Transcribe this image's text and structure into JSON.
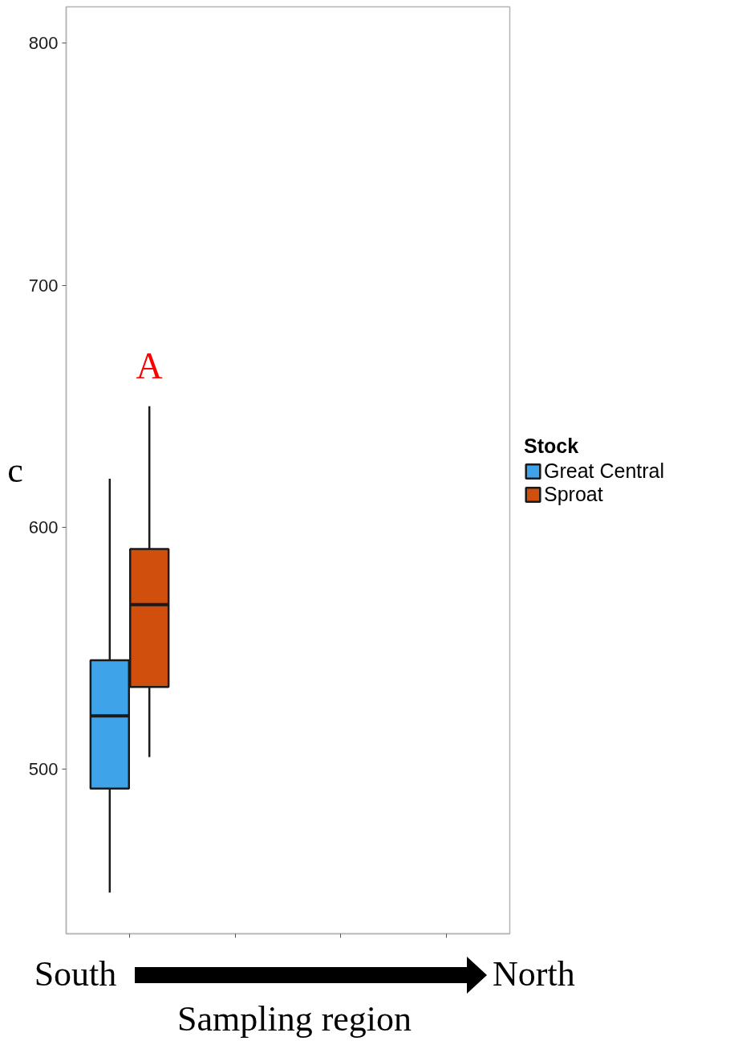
{
  "chart_data": {
    "type": "box",
    "xlabel": "Sampling region",
    "ylabel": "c",
    "legend_title": "Stock",
    "legend": "right",
    "categories": [
      null,
      null,
      null,
      null
    ],
    "ylim": [
      432,
      815
    ],
    "yticks": [
      500,
      600,
      700,
      800
    ],
    "series": [
      {
        "name": "Great Central",
        "color": "#3fa3ea",
        "boxes": [
          {
            "low": 449,
            "q1": 492,
            "median": 522,
            "q3": 545,
            "high": 620
          },
          null,
          null,
          null
        ]
      },
      {
        "name": "Sproat",
        "color": "#d14f0c",
        "boxes": [
          {
            "low": 505,
            "q1": 534,
            "median": 568,
            "q3": 591,
            "high": 650
          },
          null,
          null,
          null
        ]
      }
    ],
    "annotations": [
      "A",
      "South",
      "North"
    ]
  }
}
